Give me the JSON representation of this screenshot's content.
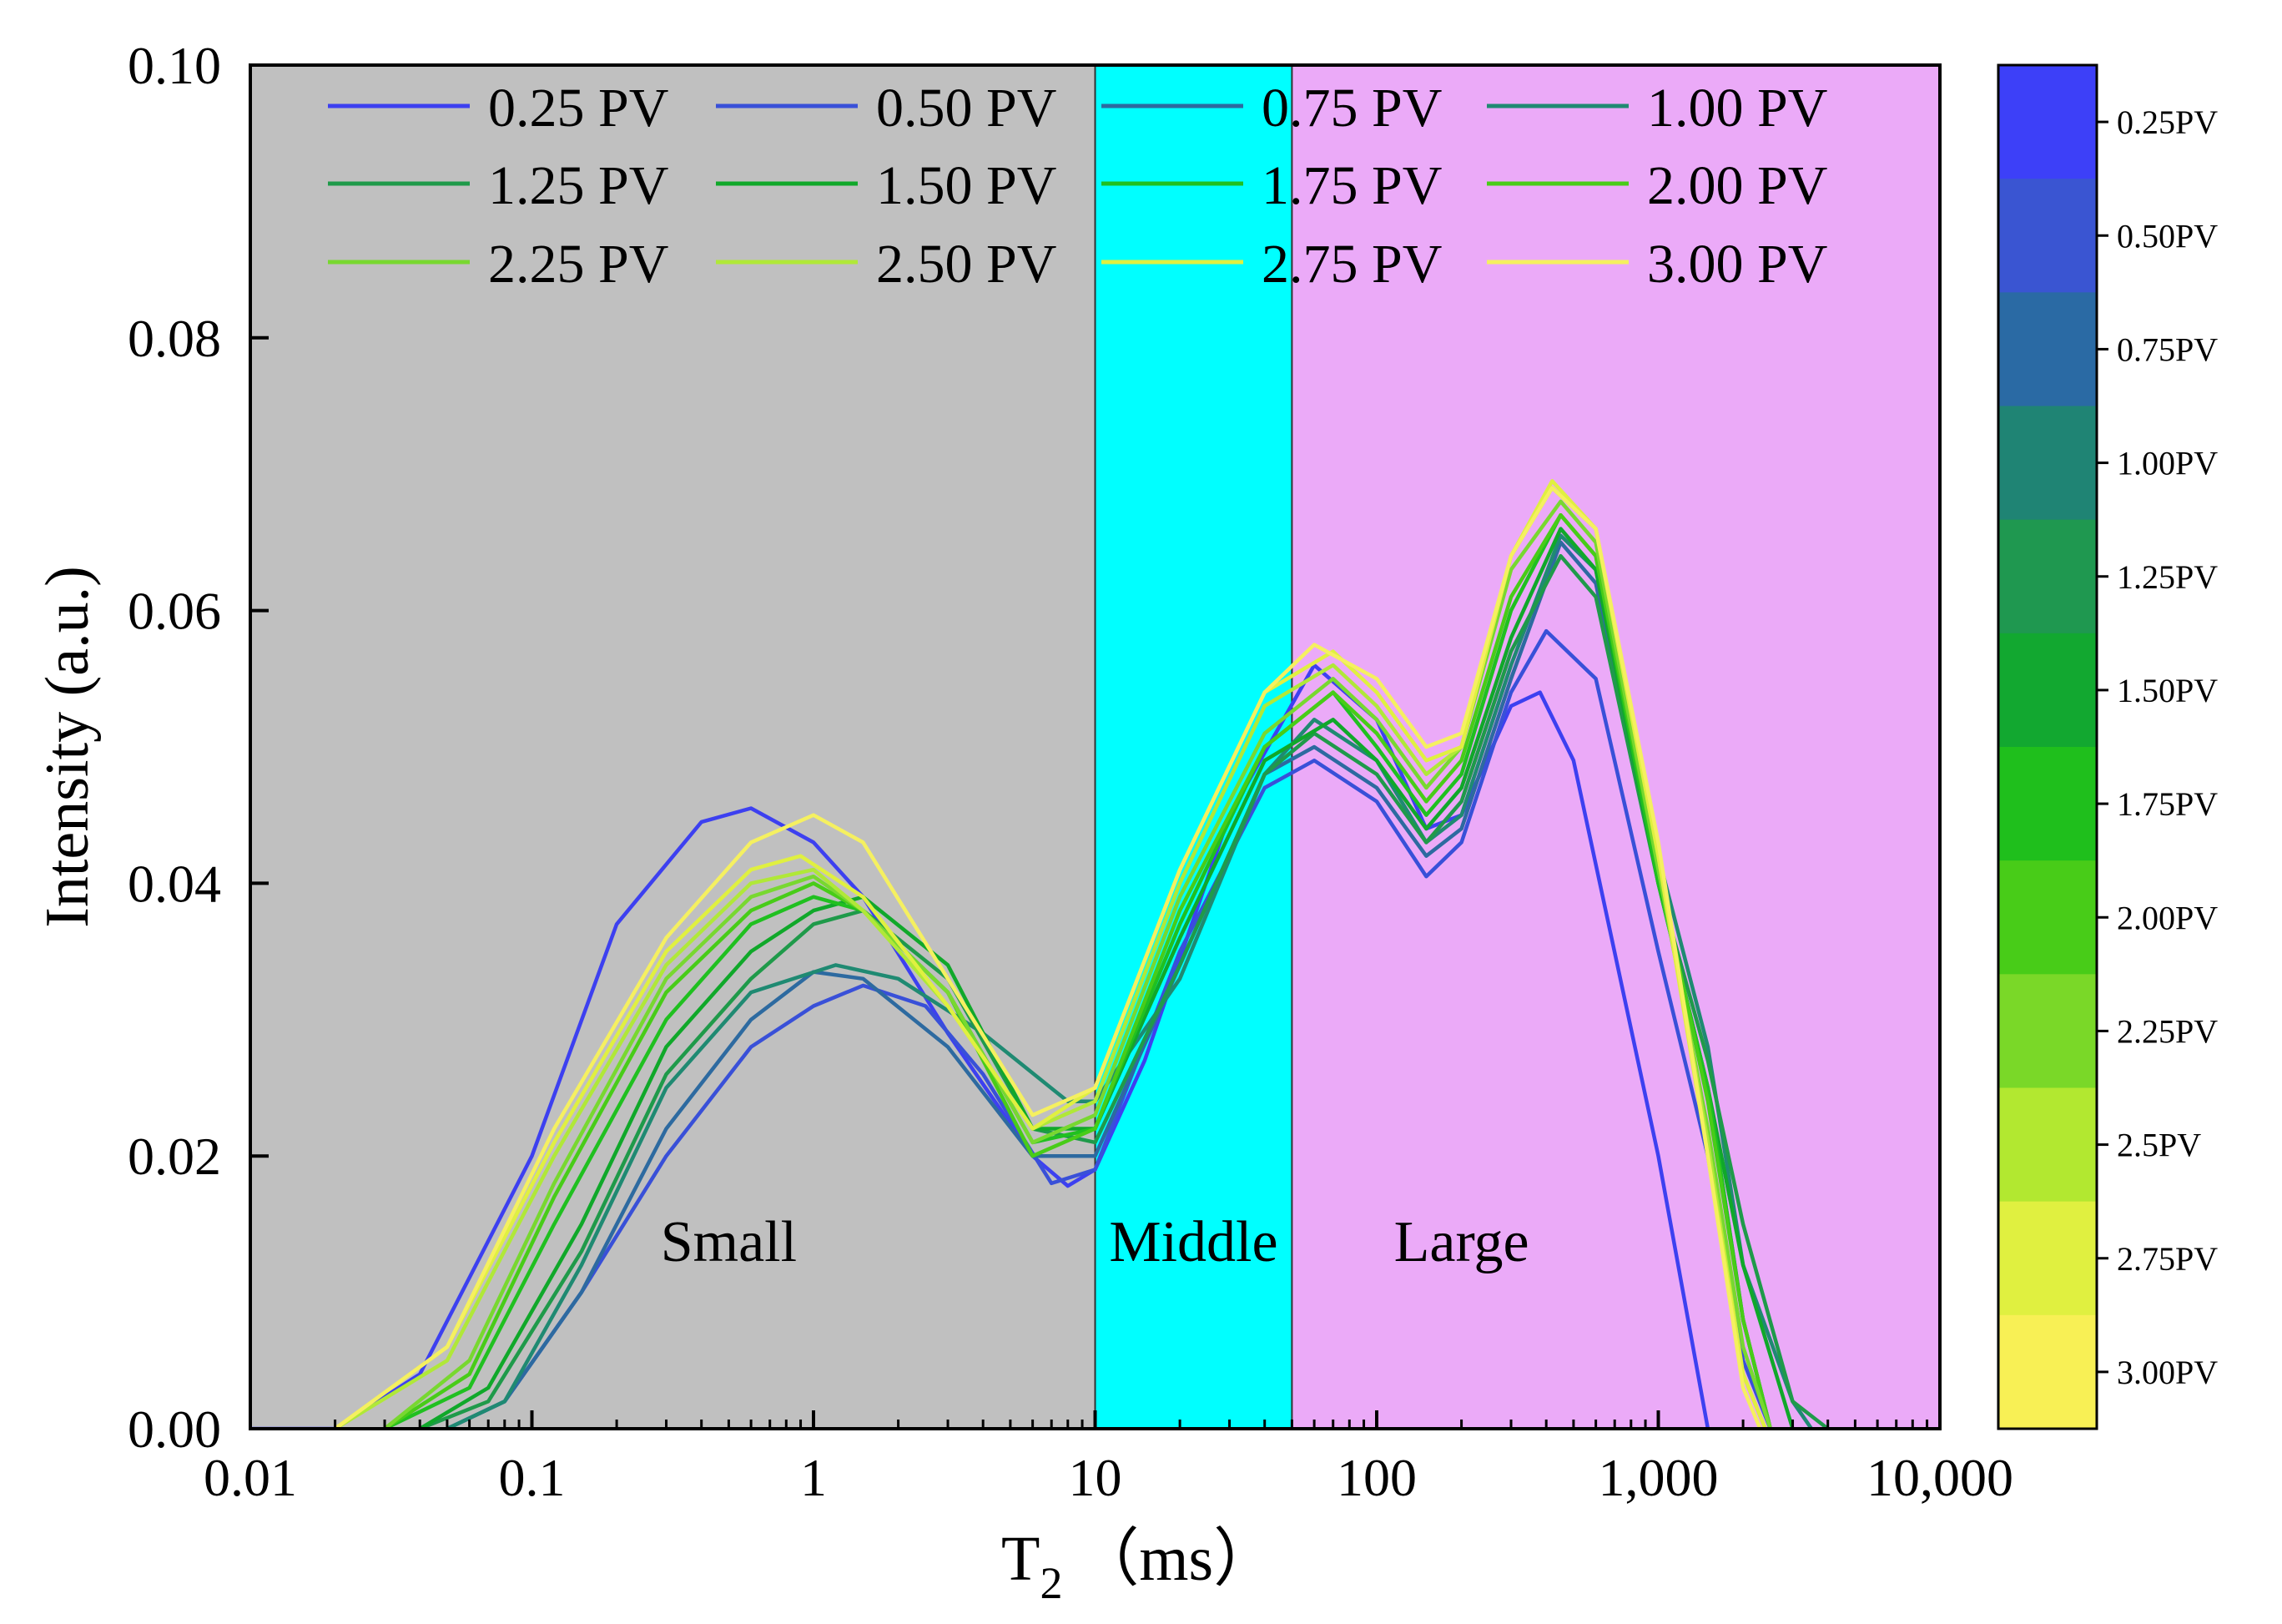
{
  "chart_data": {
    "type": "line",
    "xlabel": "T",
    "xlabel_sub": "2",
    "xlabel_unit": "（ms）",
    "ylabel": "Intensity (a.u.)",
    "xscale": "log",
    "xlim": [
      0.01,
      10000
    ],
    "ylim": [
      0,
      0.1
    ],
    "xticks": [
      0.01,
      0.1,
      1,
      10,
      100,
      1000,
      10000
    ],
    "xtick_labels": [
      "0.01",
      "0.1",
      "1",
      "10",
      "100",
      "1,000",
      "10,000"
    ],
    "yticks": [
      0,
      0.02,
      0.04,
      0.06,
      0.08,
      0.1
    ],
    "ytick_labels": [
      "0.00",
      "0.02",
      "0.04",
      "0.06",
      "0.08",
      "0.10"
    ],
    "grid": false,
    "legend_position": "top, inside plot, 4 columns",
    "regions": [
      {
        "label": "Small",
        "x_start": 0.01,
        "x_end": 10,
        "color": "#c0c0c0"
      },
      {
        "label": "Middle",
        "x_start": 10,
        "x_end": 50,
        "color": "#00ffff"
      },
      {
        "label": "Large",
        "x_start": 50,
        "x_end": 10000,
        "color": "#ebaaf8"
      }
    ],
    "series": [
      {
        "name": "0.25 PV",
        "color": "#3d40f0",
        "points": [
          [
            0.01,
            0
          ],
          [
            0.02,
            0
          ],
          [
            0.04,
            0.004
          ],
          [
            0.1,
            0.02
          ],
          [
            0.2,
            0.037
          ],
          [
            0.4,
            0.0445
          ],
          [
            0.6,
            0.0455
          ],
          [
            1,
            0.043
          ],
          [
            1.5,
            0.039
          ],
          [
            3,
            0.029
          ],
          [
            6,
            0.02
          ],
          [
            8,
            0.0178
          ],
          [
            10,
            0.019
          ],
          [
            15,
            0.027
          ],
          [
            30,
            0.045
          ],
          [
            60,
            0.056
          ],
          [
            100,
            0.052
          ],
          [
            150,
            0.044
          ],
          [
            200,
            0.045
          ],
          [
            300,
            0.053
          ],
          [
            380,
            0.054
          ],
          [
            500,
            0.049
          ],
          [
            1000,
            0.02
          ],
          [
            1500,
            0
          ]
        ]
      },
      {
        "name": "0.50 PV",
        "color": "#3950d8",
        "points": [
          [
            0.05,
            0
          ],
          [
            0.08,
            0.002
          ],
          [
            0.15,
            0.01
          ],
          [
            0.3,
            0.02
          ],
          [
            0.6,
            0.028
          ],
          [
            1,
            0.031
          ],
          [
            1.5,
            0.0325
          ],
          [
            2.5,
            0.031
          ],
          [
            4,
            0.026
          ],
          [
            7,
            0.018
          ],
          [
            10,
            0.019
          ],
          [
            20,
            0.035
          ],
          [
            40,
            0.047
          ],
          [
            60,
            0.049
          ],
          [
            100,
            0.046
          ],
          [
            150,
            0.0405
          ],
          [
            200,
            0.043
          ],
          [
            300,
            0.054
          ],
          [
            400,
            0.0585
          ],
          [
            600,
            0.055
          ],
          [
            1000,
            0.035
          ],
          [
            1500,
            0.02
          ],
          [
            2000,
            0.005
          ],
          [
            2500,
            0
          ]
        ]
      },
      {
        "name": "0.75 PV",
        "color": "#2d6aa0",
        "points": [
          [
            0.05,
            0
          ],
          [
            0.08,
            0.002
          ],
          [
            0.15,
            0.01
          ],
          [
            0.3,
            0.022
          ],
          [
            0.6,
            0.03
          ],
          [
            1,
            0.0335
          ],
          [
            1.5,
            0.033
          ],
          [
            3,
            0.028
          ],
          [
            6,
            0.02
          ],
          [
            10,
            0.02
          ],
          [
            20,
            0.034
          ],
          [
            40,
            0.048
          ],
          [
            60,
            0.05
          ],
          [
            100,
            0.047
          ],
          [
            150,
            0.042
          ],
          [
            200,
            0.044
          ],
          [
            300,
            0.055
          ],
          [
            450,
            0.065
          ],
          [
            600,
            0.062
          ],
          [
            1000,
            0.04
          ],
          [
            1500,
            0.025
          ],
          [
            2000,
            0.008
          ],
          [
            2500,
            0
          ]
        ]
      },
      {
        "name": "1.00 PV",
        "color": "#1f8a72",
        "points": [
          [
            0.05,
            0
          ],
          [
            0.08,
            0.002
          ],
          [
            0.15,
            0.012
          ],
          [
            0.3,
            0.025
          ],
          [
            0.6,
            0.032
          ],
          [
            1.2,
            0.034
          ],
          [
            2,
            0.033
          ],
          [
            4,
            0.029
          ],
          [
            8,
            0.024
          ],
          [
            10,
            0.024
          ],
          [
            20,
            0.033
          ],
          [
            40,
            0.048
          ],
          [
            60,
            0.052
          ],
          [
            100,
            0.049
          ],
          [
            150,
            0.043
          ],
          [
            200,
            0.045
          ],
          [
            300,
            0.056
          ],
          [
            450,
            0.0655
          ],
          [
            600,
            0.063
          ],
          [
            1000,
            0.042
          ],
          [
            1500,
            0.028
          ],
          [
            2000,
            0.012
          ],
          [
            3000,
            0.002
          ],
          [
            3500,
            0
          ]
        ]
      },
      {
        "name": "1.25 PV",
        "color": "#1f9a4a",
        "points": [
          [
            0.04,
            0
          ],
          [
            0.07,
            0.002
          ],
          [
            0.15,
            0.013
          ],
          [
            0.3,
            0.026
          ],
          [
            0.6,
            0.033
          ],
          [
            1,
            0.037
          ],
          [
            1.5,
            0.038
          ],
          [
            3,
            0.033
          ],
          [
            6,
            0.022
          ],
          [
            10,
            0.021
          ],
          [
            20,
            0.034
          ],
          [
            40,
            0.048
          ],
          [
            60,
            0.051
          ],
          [
            100,
            0.048
          ],
          [
            150,
            0.043
          ],
          [
            200,
            0.046
          ],
          [
            300,
            0.057
          ],
          [
            450,
            0.064
          ],
          [
            600,
            0.061
          ],
          [
            1000,
            0.04
          ],
          [
            1500,
            0.027
          ],
          [
            2000,
            0.015
          ],
          [
            3000,
            0.002
          ],
          [
            4000,
            0
          ]
        ]
      },
      {
        "name": "1.50 PV",
        "color": "#10a82a",
        "points": [
          [
            0.04,
            0
          ],
          [
            0.07,
            0.003
          ],
          [
            0.15,
            0.015
          ],
          [
            0.3,
            0.028
          ],
          [
            0.6,
            0.035
          ],
          [
            1,
            0.038
          ],
          [
            1.5,
            0.039
          ],
          [
            3,
            0.034
          ],
          [
            6,
            0.022
          ],
          [
            10,
            0.022
          ],
          [
            20,
            0.036
          ],
          [
            40,
            0.049
          ],
          [
            70,
            0.052
          ],
          [
            100,
            0.049
          ],
          [
            150,
            0.044
          ],
          [
            200,
            0.047
          ],
          [
            300,
            0.058
          ],
          [
            450,
            0.066
          ],
          [
            600,
            0.063
          ],
          [
            1000,
            0.04
          ],
          [
            1500,
            0.025
          ],
          [
            2000,
            0.012
          ],
          [
            3000,
            0
          ]
        ]
      },
      {
        "name": "1.75 PV",
        "color": "#20c020",
        "points": [
          [
            0.03,
            0
          ],
          [
            0.06,
            0.003
          ],
          [
            0.12,
            0.015
          ],
          [
            0.3,
            0.03
          ],
          [
            0.6,
            0.037
          ],
          [
            1,
            0.039
          ],
          [
            1.5,
            0.038
          ],
          [
            3,
            0.032
          ],
          [
            6,
            0.021
          ],
          [
            10,
            0.022
          ],
          [
            20,
            0.037
          ],
          [
            40,
            0.05
          ],
          [
            70,
            0.054
          ],
          [
            100,
            0.05
          ],
          [
            150,
            0.045
          ],
          [
            200,
            0.048
          ],
          [
            300,
            0.06
          ],
          [
            450,
            0.067
          ],
          [
            600,
            0.064
          ],
          [
            1000,
            0.04
          ],
          [
            1500,
            0.025
          ],
          [
            2000,
            0.008
          ],
          [
            2500,
            0
          ]
        ]
      },
      {
        "name": "2.00 PV",
        "color": "#48cc18",
        "points": [
          [
            0.03,
            0
          ],
          [
            0.06,
            0.004
          ],
          [
            0.12,
            0.017
          ],
          [
            0.3,
            0.032
          ],
          [
            0.6,
            0.038
          ],
          [
            1,
            0.04
          ],
          [
            1.5,
            0.038
          ],
          [
            3,
            0.032
          ],
          [
            6,
            0.02
          ],
          [
            10,
            0.022
          ],
          [
            20,
            0.038
          ],
          [
            40,
            0.05
          ],
          [
            70,
            0.054
          ],
          [
            100,
            0.051
          ],
          [
            150,
            0.046
          ],
          [
            200,
            0.049
          ],
          [
            300,
            0.061
          ],
          [
            450,
            0.067
          ],
          [
            600,
            0.064
          ],
          [
            1000,
            0.041
          ],
          [
            1500,
            0.024
          ],
          [
            2000,
            0.008
          ],
          [
            2500,
            0
          ]
        ]
      },
      {
        "name": "2.25 PV",
        "color": "#78d830",
        "points": [
          [
            0.03,
            0
          ],
          [
            0.06,
            0.005
          ],
          [
            0.12,
            0.018
          ],
          [
            0.3,
            0.033
          ],
          [
            0.6,
            0.039
          ],
          [
            1,
            0.0405
          ],
          [
            1.5,
            0.038
          ],
          [
            3,
            0.032
          ],
          [
            6,
            0.021
          ],
          [
            10,
            0.023
          ],
          [
            20,
            0.039
          ],
          [
            40,
            0.051
          ],
          [
            70,
            0.055
          ],
          [
            100,
            0.052
          ],
          [
            150,
            0.047
          ],
          [
            200,
            0.05
          ],
          [
            300,
            0.063
          ],
          [
            450,
            0.068
          ],
          [
            600,
            0.065
          ],
          [
            1000,
            0.041
          ],
          [
            1500,
            0.022
          ],
          [
            2000,
            0.006
          ],
          [
            2500,
            0
          ]
        ]
      },
      {
        "name": "2.50 PV",
        "color": "#b0e838",
        "points": [
          [
            0.02,
            0
          ],
          [
            0.05,
            0.005
          ],
          [
            0.12,
            0.02
          ],
          [
            0.3,
            0.034
          ],
          [
            0.6,
            0.04
          ],
          [
            1,
            0.041
          ],
          [
            1.5,
            0.038
          ],
          [
            3,
            0.031
          ],
          [
            6,
            0.022
          ],
          [
            10,
            0.024
          ],
          [
            20,
            0.04
          ],
          [
            40,
            0.053
          ],
          [
            70,
            0.056
          ],
          [
            100,
            0.053
          ],
          [
            150,
            0.048
          ],
          [
            200,
            0.05
          ],
          [
            300,
            0.064
          ],
          [
            420,
            0.069
          ],
          [
            600,
            0.066
          ],
          [
            1000,
            0.042
          ],
          [
            1500,
            0.021
          ],
          [
            2000,
            0.004
          ],
          [
            2400,
            0
          ]
        ]
      },
      {
        "name": "2.75 PV",
        "color": "#e0f040",
        "points": [
          [
            0.02,
            0
          ],
          [
            0.05,
            0.006
          ],
          [
            0.12,
            0.021
          ],
          [
            0.3,
            0.035
          ],
          [
            0.6,
            0.041
          ],
          [
            0.9,
            0.042
          ],
          [
            1.5,
            0.039
          ],
          [
            3,
            0.031
          ],
          [
            6,
            0.022
          ],
          [
            10,
            0.025
          ],
          [
            20,
            0.041
          ],
          [
            40,
            0.054
          ],
          [
            70,
            0.057
          ],
          [
            100,
            0.054
          ],
          [
            150,
            0.049
          ],
          [
            200,
            0.05
          ],
          [
            300,
            0.064
          ],
          [
            420,
            0.0695
          ],
          [
            600,
            0.066
          ],
          [
            1000,
            0.042
          ],
          [
            1500,
            0.02
          ],
          [
            2000,
            0.004
          ],
          [
            2400,
            0
          ]
        ]
      },
      {
        "name": "3.00 PV",
        "color": "#f5f060",
        "points": [
          [
            0.02,
            0
          ],
          [
            0.05,
            0.006
          ],
          [
            0.12,
            0.022
          ],
          [
            0.3,
            0.036
          ],
          [
            0.6,
            0.043
          ],
          [
            1,
            0.045
          ],
          [
            1.5,
            0.043
          ],
          [
            3,
            0.033
          ],
          [
            6,
            0.023
          ],
          [
            10,
            0.025
          ],
          [
            20,
            0.041
          ],
          [
            40,
            0.054
          ],
          [
            60,
            0.0575
          ],
          [
            100,
            0.055
          ],
          [
            150,
            0.05
          ],
          [
            200,
            0.051
          ],
          [
            300,
            0.064
          ],
          [
            420,
            0.069
          ],
          [
            600,
            0.066
          ],
          [
            1000,
            0.043
          ],
          [
            1500,
            0.02
          ],
          [
            2000,
            0.003
          ],
          [
            2300,
            0
          ]
        ]
      }
    ],
    "colorbar": {
      "labels": [
        "0.25PV",
        "0.50PV",
        "0.75PV",
        "1.00PV",
        "1.25PV",
        "1.50PV",
        "1.75PV",
        "2.00PV",
        "2.25PV",
        "2.5PV",
        "2.75PV",
        "3.00PV"
      ],
      "colors": [
        "#3d40f8",
        "#3a55d2",
        "#2a6aa4",
        "#1f8474",
        "#1f9850",
        "#12a830",
        "#1fbf1c",
        "#48cc18",
        "#7ad828",
        "#b2e830",
        "#e0f040",
        "#f8f055"
      ]
    }
  }
}
